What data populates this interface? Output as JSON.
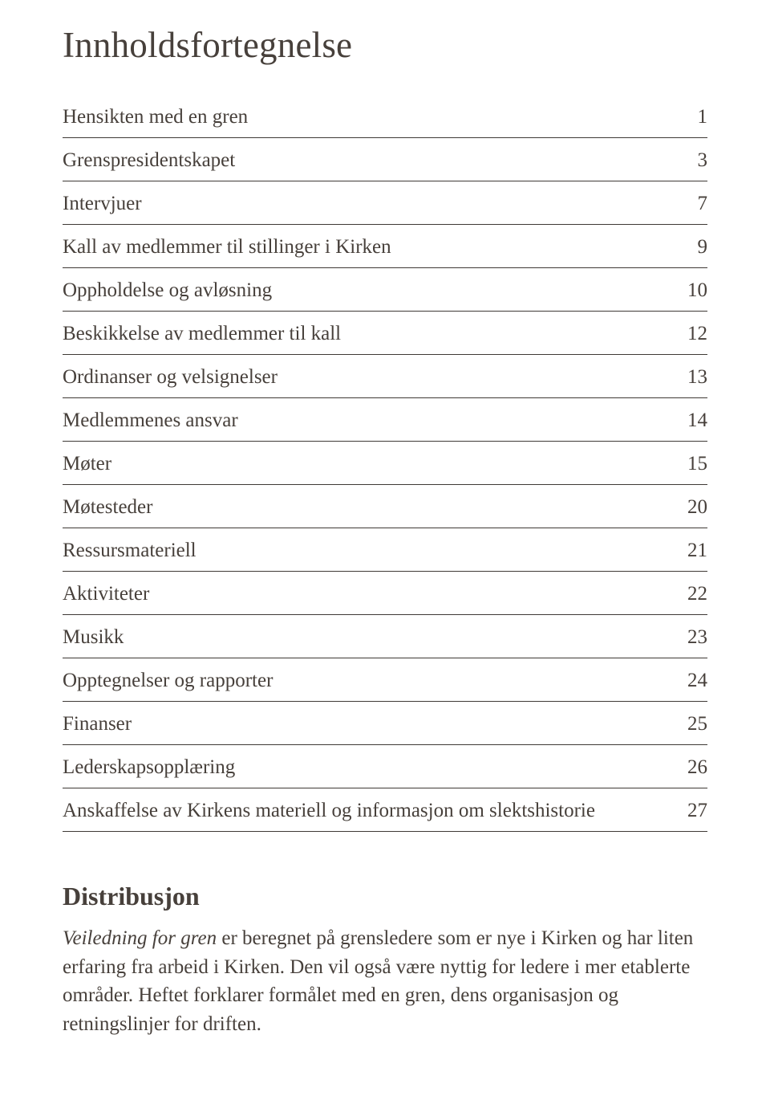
{
  "title": "Innholdsfortegnelse",
  "toc": {
    "items": [
      {
        "label": "Hensikten med en gren",
        "page": "1"
      },
      {
        "label": "Grenspresidentskapet",
        "page": "3"
      },
      {
        "label": "Intervjuer",
        "page": "7"
      },
      {
        "label": "Kall av medlemmer til stillinger i Kirken",
        "page": "9"
      },
      {
        "label": "Oppholdelse og avløsning",
        "page": "10"
      },
      {
        "label": "Beskikkelse av medlemmer til kall",
        "page": "12"
      },
      {
        "label": "Ordinanser og velsignelser",
        "page": "13"
      },
      {
        "label": "Medlemmenes ansvar",
        "page": "14"
      },
      {
        "label": "Møter",
        "page": "15"
      },
      {
        "label": "Møtesteder",
        "page": "20"
      },
      {
        "label": "Ressursmateriell",
        "page": "21"
      },
      {
        "label": "Aktiviteter",
        "page": "22"
      },
      {
        "label": "Musikk",
        "page": "23"
      },
      {
        "label": "Opptegnelser og rapporter",
        "page": "24"
      },
      {
        "label": "Finanser",
        "page": "25"
      },
      {
        "label": "Lederskapsopplæring",
        "page": "26"
      },
      {
        "label": "Anskaffelse av Kirkens materiell og informasjon om slektshistorie",
        "page": "27"
      }
    ]
  },
  "distribution": {
    "heading": "Distribusjon",
    "italic_lead": "Veiledning for gren",
    "body_rest": " er beregnet på grensledere som er nye i Kirken og har liten erfaring fra arbeid i Kirken. Den vil også være nyttig for ledere i mer etablerte områder. Heftet forklarer formålet med en gren, dens organisasjon og retningslinjer for driften."
  },
  "colors": {
    "text": "#47403b",
    "rule": "#3f3a36",
    "background": "#ffffff"
  },
  "typography": {
    "title_fontsize": 45,
    "toc_fontsize": 25,
    "heading_fontsize": 32,
    "body_fontsize": 25,
    "font_family": "Palatino / Book Antiqua serif"
  }
}
